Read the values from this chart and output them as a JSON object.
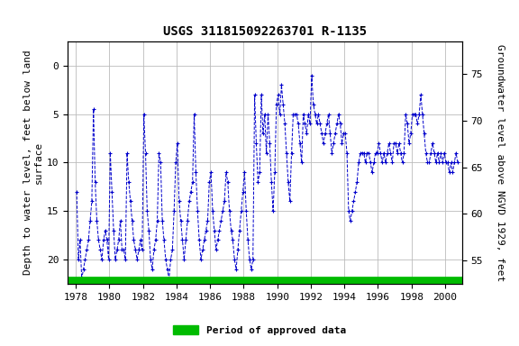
{
  "title": "USGS 311815092263701 R-1135",
  "ylabel_left": "Depth to water level, feet below land\nsurface",
  "ylabel_right": "Groundwater level above NGVD 1929, feet",
  "xlabel": "",
  "ylim_left": [
    22.5,
    -2.5
  ],
  "ylim_right": [
    52.5,
    78.5
  ],
  "xlim": [
    1977.5,
    2001.0
  ],
  "yticks_left": [
    0,
    5,
    10,
    15,
    20
  ],
  "yticks_right": [
    55,
    60,
    65,
    70,
    75
  ],
  "xticks": [
    1978,
    1980,
    1982,
    1984,
    1986,
    1988,
    1990,
    1992,
    1994,
    1996,
    1998,
    2000
  ],
  "line_color": "#0000CC",
  "marker": "+",
  "linestyle": "--",
  "grid_color": "#bbbbbb",
  "bg_color": "#ffffff",
  "legend_label": "Period of approved data",
  "legend_color": "#00BB00",
  "title_fontsize": 10,
  "axis_label_fontsize": 8,
  "tick_fontsize": 8,
  "green_bar_y": 22.0,
  "data_x": [
    1978.05,
    1978.15,
    1978.25,
    1978.35,
    1978.45,
    1978.55,
    1978.65,
    1978.75,
    1978.85,
    1978.95,
    1979.05,
    1979.15,
    1979.25,
    1979.35,
    1979.45,
    1979.55,
    1979.65,
    1979.75,
    1979.85,
    1979.95,
    1980.05,
    1980.15,
    1980.25,
    1980.35,
    1980.45,
    1980.55,
    1980.65,
    1980.75,
    1980.85,
    1980.95,
    1981.05,
    1981.15,
    1981.25,
    1981.35,
    1981.45,
    1981.55,
    1981.65,
    1981.75,
    1981.85,
    1981.95,
    1982.05,
    1982.15,
    1982.25,
    1982.35,
    1982.45,
    1982.55,
    1982.65,
    1982.75,
    1982.85,
    1982.95,
    1983.05,
    1983.15,
    1983.25,
    1983.35,
    1983.45,
    1983.55,
    1983.65,
    1983.75,
    1983.85,
    1983.95,
    1984.05,
    1984.15,
    1984.25,
    1984.35,
    1984.45,
    1984.55,
    1984.65,
    1984.75,
    1984.85,
    1984.95,
    1985.05,
    1985.15,
    1985.25,
    1985.35,
    1985.45,
    1985.55,
    1985.65,
    1985.75,
    1985.85,
    1985.95,
    1986.05,
    1986.15,
    1986.25,
    1986.35,
    1986.45,
    1986.55,
    1986.65,
    1986.75,
    1986.85,
    1986.95,
    1987.05,
    1987.15,
    1987.25,
    1987.35,
    1987.45,
    1987.55,
    1987.65,
    1987.75,
    1987.85,
    1987.95,
    1988.05,
    1988.15,
    1988.25,
    1988.35,
    1988.45,
    1988.55,
    1988.65,
    1988.75,
    1988.85,
    1988.95,
    1989.05,
    1989.15,
    1989.25,
    1989.35,
    1989.45,
    1989.55,
    1989.65,
    1989.75,
    1989.85,
    1989.95,
    1990.05,
    1990.15,
    1990.25,
    1990.35,
    1990.45,
    1990.55,
    1990.65,
    1990.75,
    1990.85,
    1990.95,
    1991.05,
    1991.15,
    1991.25,
    1991.35,
    1991.45,
    1991.55,
    1991.65,
    1991.75,
    1991.85,
    1991.95,
    1992.05,
    1992.15,
    1992.25,
    1992.35,
    1992.45,
    1992.55,
    1992.65,
    1992.75,
    1992.85,
    1992.95,
    1993.05,
    1993.15,
    1993.25,
    1993.35,
    1993.45,
    1993.55,
    1993.65,
    1993.75,
    1993.85,
    1993.95,
    1994.05,
    1994.15,
    1994.25,
    1994.35,
    1994.45,
    1994.55,
    1994.65,
    1994.75,
    1994.85,
    1994.95,
    1995.05,
    1995.15,
    1995.25,
    1995.35,
    1995.45,
    1995.55,
    1995.65,
    1995.75,
    1995.85,
    1995.95,
    1996.05,
    1996.15,
    1996.25,
    1996.35,
    1996.45,
    1996.55,
    1996.65,
    1996.75,
    1996.85,
    1996.95,
    1997.05,
    1997.15,
    1997.25,
    1997.35,
    1997.45,
    1997.55,
    1997.65,
    1997.75,
    1997.85,
    1997.95,
    1998.05,
    1998.15,
    1998.25,
    1998.35,
    1998.45,
    1998.55,
    1998.65,
    1998.75,
    1998.85,
    1998.95,
    1999.05,
    1999.15,
    1999.25,
    1999.35,
    1999.45,
    1999.55,
    1999.65,
    1999.75,
    1999.85,
    1999.95,
    2000.05,
    2000.15,
    2000.25,
    2000.35,
    2000.45,
    2000.55,
    2000.65,
    2000.75
  ],
  "data_y": [
    13,
    20,
    18,
    22,
    21,
    20,
    19,
    18,
    16,
    14,
    4.5,
    12,
    16,
    18,
    19,
    20,
    18,
    17,
    18,
    20,
    9,
    13,
    17,
    20,
    19,
    18,
    16,
    19,
    19,
    20,
    9,
    12,
    14,
    16,
    18,
    19,
    20,
    19,
    18,
    19,
    5,
    9,
    15,
    17,
    20,
    21,
    19,
    18,
    16,
    9,
    10,
    16,
    18,
    20,
    21,
    22,
    20,
    19,
    15,
    10,
    8,
    14,
    16,
    18,
    20,
    18,
    16,
    14,
    13,
    12,
    5,
    11,
    15,
    18,
    20,
    19,
    18,
    17,
    16,
    12,
    11,
    15,
    17,
    19,
    18,
    17,
    16,
    15,
    14,
    11,
    12,
    15,
    17,
    18,
    20,
    21,
    19,
    17,
    15,
    13,
    11,
    15,
    18,
    20,
    21,
    20,
    3,
    8,
    12,
    11,
    3,
    7,
    5,
    9,
    5,
    8,
    12,
    15,
    11,
    4,
    3,
    5,
    2,
    4,
    6,
    9,
    12,
    14,
    9,
    5,
    5,
    5,
    6,
    8,
    10,
    5,
    6,
    7,
    5,
    6,
    1,
    4,
    5,
    6,
    5,
    6,
    7,
    8,
    7,
    6,
    5,
    7,
    9,
    8,
    7,
    6,
    5,
    6,
    8,
    7,
    7,
    9,
    15,
    16,
    15,
    14,
    13,
    12,
    10,
    9,
    9,
    9,
    10,
    9,
    9,
    10,
    11,
    10,
    9,
    9,
    8,
    9,
    10,
    9,
    10,
    9,
    8,
    9,
    10,
    8,
    8,
    9,
    8,
    9,
    10,
    9,
    5,
    6,
    8,
    7,
    5,
    5,
    5,
    6,
    5,
    3,
    5,
    7,
    9,
    10,
    10,
    9,
    8,
    9,
    10,
    9,
    10,
    9,
    10,
    9,
    10,
    10,
    11,
    10,
    11,
    10,
    9,
    10
  ]
}
